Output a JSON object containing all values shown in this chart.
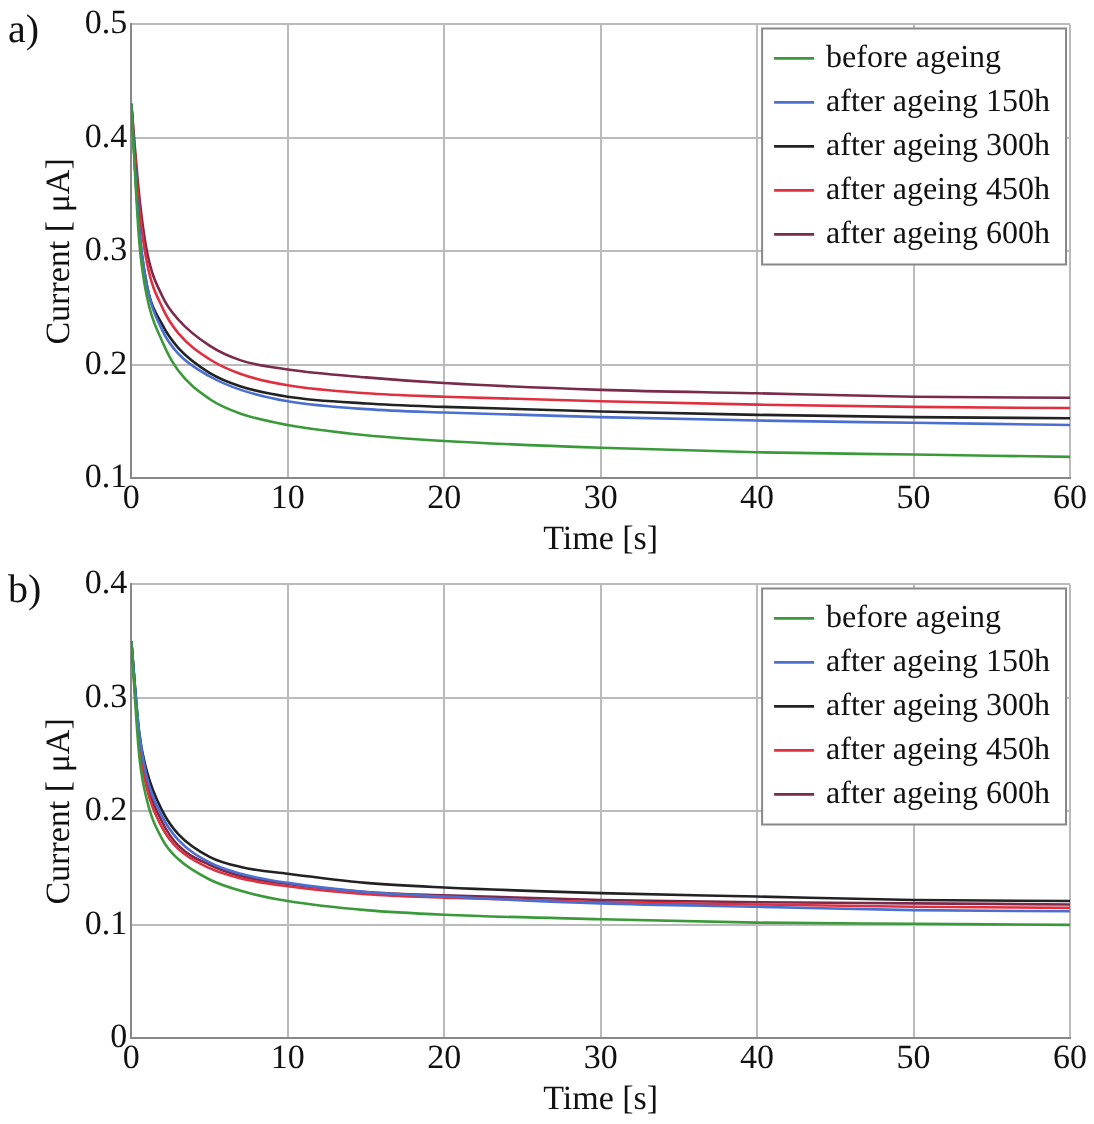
{
  "chart_data": [
    {
      "type": "line",
      "annotations": [
        "a)"
      ],
      "xlabel": "Time [s]",
      "ylabel": "Current [ μA]",
      "xlim": [
        0,
        60
      ],
      "xticks": [
        0,
        10,
        20,
        30,
        40,
        50,
        60
      ],
      "ylim": [
        0.1,
        0.5
      ],
      "yticks": [
        0.1,
        0.2,
        0.3,
        0.4,
        0.5
      ],
      "grid": true,
      "legend": "top right",
      "marker": "none",
      "line_style": "solid",
      "x": [
        0,
        0.5,
        1,
        2,
        3,
        5,
        7,
        10,
        15,
        20,
        30,
        40,
        50,
        60
      ],
      "series": [
        {
          "name": "before ageing",
          "color": "#3a9a3a",
          "values": [
            0.43,
            0.31,
            0.26,
            0.22,
            0.195,
            0.17,
            0.157,
            0.147,
            0.138,
            0.133,
            0.127,
            0.123,
            0.121,
            0.119
          ]
        },
        {
          "name": "after ageing 150h",
          "color": "#4a6fd0",
          "values": [
            0.43,
            0.32,
            0.27,
            0.23,
            0.21,
            0.19,
            0.178,
            0.168,
            0.161,
            0.158,
            0.154,
            0.151,
            0.149,
            0.147
          ]
        },
        {
          "name": "after ageing 300h",
          "color": "#222222",
          "values": [
            0.43,
            0.32,
            0.27,
            0.235,
            0.215,
            0.193,
            0.181,
            0.172,
            0.166,
            0.163,
            0.159,
            0.156,
            0.154,
            0.153
          ]
        },
        {
          "name": "after ageing 450h",
          "color": "#e03040",
          "values": [
            0.43,
            0.34,
            0.29,
            0.25,
            0.228,
            0.205,
            0.192,
            0.182,
            0.175,
            0.172,
            0.168,
            0.165,
            0.163,
            0.162
          ]
        },
        {
          "name": "after ageing 600h",
          "color": "#7a2a4a",
          "values": [
            0.43,
            0.35,
            0.3,
            0.26,
            0.24,
            0.217,
            0.204,
            0.196,
            0.189,
            0.184,
            0.178,
            0.175,
            0.172,
            0.171
          ]
        }
      ]
    },
    {
      "type": "line",
      "annotations": [
        "b)"
      ],
      "xlabel": "Time [s]",
      "ylabel": "Current [ μA]",
      "xlim": [
        0,
        60
      ],
      "xticks": [
        0,
        10,
        20,
        30,
        40,
        50,
        60
      ],
      "ylim": [
        0,
        0.4
      ],
      "yticks": [
        0,
        0.1,
        0.2,
        0.3,
        0.4
      ],
      "grid": true,
      "legend": "top right",
      "marker": "none",
      "line_style": "solid",
      "x": [
        0,
        0.5,
        1,
        2,
        3,
        5,
        7,
        10,
        15,
        20,
        30,
        40,
        50,
        60
      ],
      "series": [
        {
          "name": "before ageing",
          "color": "#3a9a3a",
          "values": [
            0.35,
            0.25,
            0.21,
            0.175,
            0.158,
            0.14,
            0.13,
            0.121,
            0.113,
            0.109,
            0.105,
            0.102,
            0.101,
            0.1
          ]
        },
        {
          "name": "after ageing 150h",
          "color": "#4a6fd0",
          "values": [
            0.35,
            0.27,
            0.23,
            0.195,
            0.175,
            0.155,
            0.145,
            0.137,
            0.129,
            0.125,
            0.119,
            0.116,
            0.113,
            0.112
          ]
        },
        {
          "name": "after ageing 300h",
          "color": "#222222",
          "values": [
            0.35,
            0.27,
            0.235,
            0.2,
            0.18,
            0.16,
            0.151,
            0.145,
            0.137,
            0.133,
            0.128,
            0.125,
            0.122,
            0.121
          ]
        },
        {
          "name": "after ageing 450h",
          "color": "#e03040",
          "values": [
            0.35,
            0.26,
            0.22,
            0.185,
            0.167,
            0.15,
            0.141,
            0.134,
            0.127,
            0.124,
            0.12,
            0.118,
            0.116,
            0.115
          ]
        },
        {
          "name": "after ageing 600h",
          "color": "#7a2a4a",
          "values": [
            0.35,
            0.265,
            0.225,
            0.19,
            0.17,
            0.153,
            0.143,
            0.136,
            0.129,
            0.126,
            0.122,
            0.12,
            0.119,
            0.118
          ]
        }
      ]
    }
  ]
}
